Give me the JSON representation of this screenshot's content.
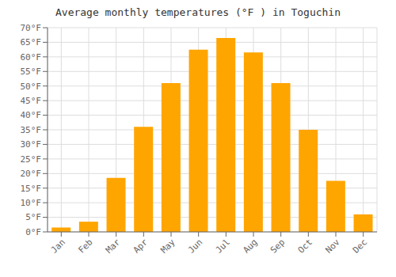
{
  "chart_data": {
    "type": "bar",
    "title": "Average monthly temperatures (°F ) in Toguchin",
    "categories": [
      "Jan",
      "Feb",
      "Mar",
      "Apr",
      "May",
      "Jun",
      "Jul",
      "Aug",
      "Sep",
      "Oct",
      "Nov",
      "Dec"
    ],
    "values": [
      1.5,
      3.5,
      18.5,
      36.0,
      51.0,
      62.5,
      66.5,
      61.5,
      51.0,
      35.0,
      17.5,
      6.0
    ],
    "color": "#FFA500",
    "ylim": [
      0,
      70
    ],
    "yticks": [
      {
        "value": 0,
        "label": "0°F"
      },
      {
        "value": 5,
        "label": "5°F"
      },
      {
        "value": 10,
        "label": "10°F"
      },
      {
        "value": 15,
        "label": "15°F"
      },
      {
        "value": 20,
        "label": "20°F"
      },
      {
        "value": 25,
        "label": "25°F"
      },
      {
        "value": 30,
        "label": "30°F"
      },
      {
        "value": 35,
        "label": "35°F"
      },
      {
        "value": 40,
        "label": "40°F"
      },
      {
        "value": 45,
        "label": "45°F"
      },
      {
        "value": 50,
        "label": "50°F"
      },
      {
        "value": 55,
        "label": "55°F"
      },
      {
        "value": 60,
        "label": "60°F"
      },
      {
        "value": 65,
        "label": "65°F"
      },
      {
        "value": 70,
        "label": "70°F"
      }
    ],
    "grid": true
  }
}
